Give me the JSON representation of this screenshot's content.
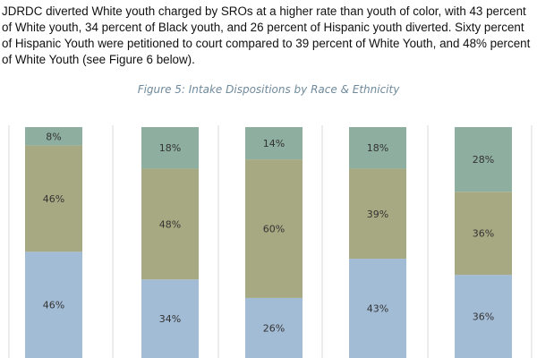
{
  "intro_text": "JDRDC diverted White youth charged by SROs at a higher rate than youth of color, with 43 percent of White youth, 34 percent of Black youth, and 26 percent of Hispanic youth diverted.  Sixty percent of Hispanic Youth were petitioned to court compared to 39 percent of White Youth, and 48% percent of White Youth (see Figure 6 below).",
  "chart_data": {
    "type": "bar",
    "stacked": true,
    "percent_stacked": true,
    "title": "Figure 5: Intake Dispositions by Race & Ethnicity",
    "categories": [
      "",
      "",
      "",
      "",
      ""
    ],
    "series": [
      {
        "values": [
          46,
          34,
          26,
          43,
          36
        ],
        "labels": [
          "46%",
          "34%",
          "26%",
          "43%",
          "36%"
        ],
        "color": "#a3bcd6"
      },
      {
        "values": [
          46,
          48,
          60,
          39,
          36
        ],
        "labels": [
          "46%",
          "48%",
          "60%",
          "39%",
          "36%"
        ],
        "color": "#a7a982"
      },
      {
        "values": [
          8,
          18,
          14,
          18,
          28
        ],
        "labels": [
          "8%",
          "18%",
          "14%",
          "18%",
          "28%"
        ],
        "color": "#8eae9f"
      }
    ],
    "ylim": [
      0,
      100
    ],
    "grid": false,
    "legend": "none"
  }
}
